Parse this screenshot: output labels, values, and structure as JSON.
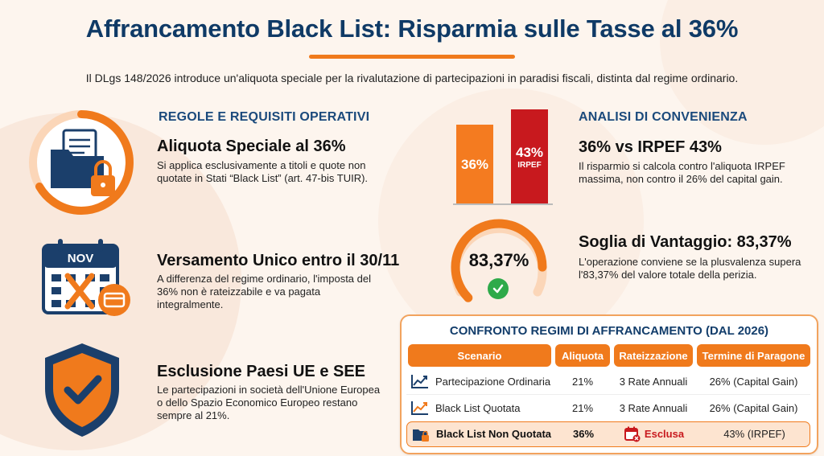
{
  "header": {
    "title": "Affrancamento Black List: Risparmia sulle Tasse al 36%",
    "intro": "Il DLgs 148/2026 introduce un'aliquota speciale per la rivalutazione di partecipazioni in paradisi fiscali, distinta dal regime ordinario."
  },
  "rules": {
    "heading": "REGOLE E REQUISITI OPERATIVI",
    "items": [
      {
        "title": "Aliquota Speciale al 36%",
        "text": "Si applica esclusivamente a titoli e quote non quotate in Stati “Black List” (art. 47-bis TUIR).",
        "icon": "folder-lock-icon"
      },
      {
        "title": "Versamento Unico entro il 30/11",
        "text": "A differenza del regime ordinario, l'imposta del 36% non è rateizzabile e va pagata integralmente.",
        "icon": "calendar-card-icon",
        "icon_label": "NOV"
      },
      {
        "title": "Esclusione Paesi UE e SEE",
        "text": "Le partecipazioni in società dell'Unione Europea o dello Spazio Economico Europeo restano sempre al 21%.",
        "icon": "shield-check-icon"
      }
    ]
  },
  "analysis": {
    "heading": "ANALISI DI CONVENIENZA",
    "bars": [
      {
        "label": "36%",
        "sub": "",
        "value": 36,
        "color": "#f47b20"
      },
      {
        "label": "43%",
        "sub": "IRPEF",
        "value": 43,
        "color": "#c8191e"
      }
    ],
    "compare_title": "36% vs IRPEF 43%",
    "compare_text": "Il risparmio si calcola contro l'aliquota IRPEF massima, non contro il 26% del capital gain.",
    "gauge_value": "83,37%",
    "gauge_fraction": 0.8337,
    "threshold_title": "Soglia di Vantaggio: 83,37%",
    "threshold_text": "L'operazione conviene se la plusvalenza supera l'83,37% del valore totale della perizia."
  },
  "table": {
    "title": "CONFRONTO REGIMI DI AFFRANCAMENTO (DAL 2026)",
    "headers": [
      "Scenario",
      "Aliquota",
      "Rateizzazione",
      "Termine di Paragone"
    ],
    "rows": [
      {
        "scenario": "Partecipazione Ordinaria",
        "aliquota": "21%",
        "rate": "3 Rate Annuali",
        "termine": "26% (Capital Gain)",
        "icon": "trend-chart-icon"
      },
      {
        "scenario": "Black List Quotata",
        "aliquota": "21%",
        "rate": "3 Rate Annuali",
        "termine": "26% (Capital Gain)",
        "icon": "trend-chart-icon"
      },
      {
        "scenario": "Black List Non Quotata",
        "aliquota": "36%",
        "rate": "Esclusa",
        "termine": "43% (IRPEF)",
        "icon": "folder-lock-icon",
        "rate_icon": "calendar-cancel-icon"
      }
    ]
  },
  "colors": {
    "orange": "#f07a1c",
    "navy": "#0f3a66",
    "red": "#c8191e",
    "green": "#2eaa4a"
  }
}
